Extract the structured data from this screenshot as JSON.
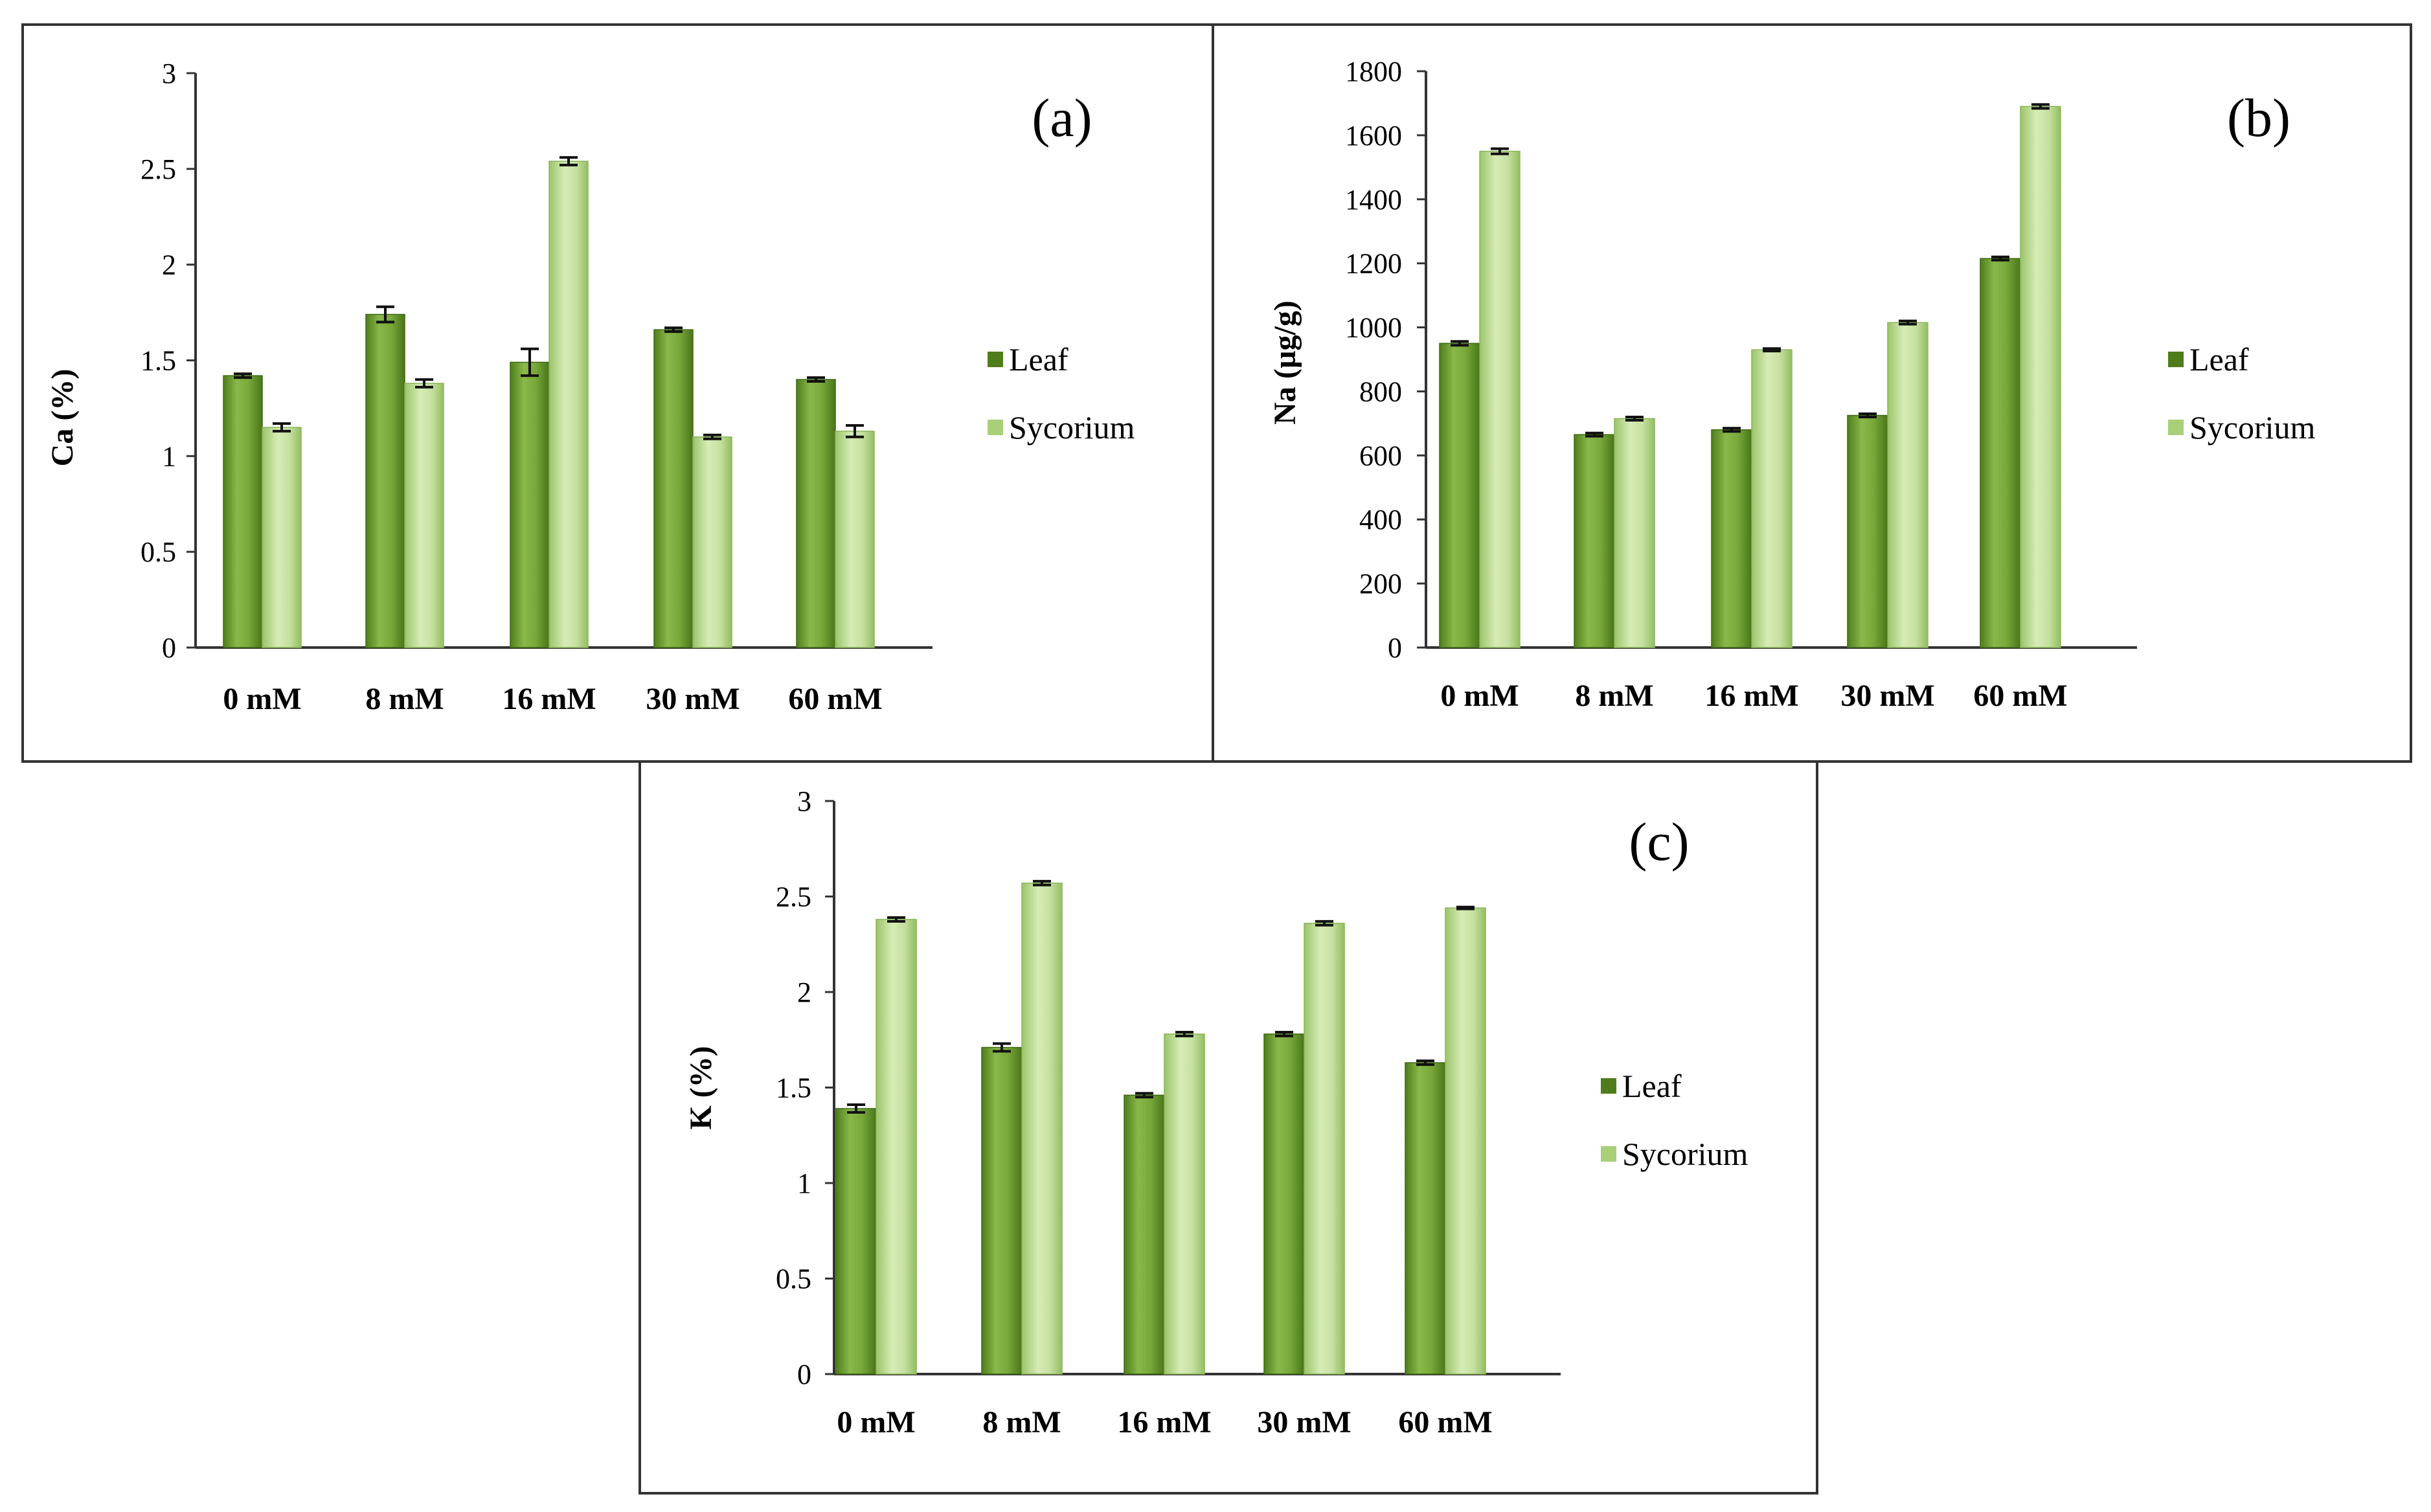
{
  "chart_data": [
    {
      "type": "bar",
      "panel_label": "(a)",
      "ylabel": "Ca (%)",
      "categories": [
        "0 mM",
        "8 mM",
        "16 mM",
        "30 mM",
        "60 mM"
      ],
      "ylim": [
        0,
        3
      ],
      "yticks": [
        "0",
        "0.5",
        "1",
        "1.5",
        "2",
        "2.5",
        "3"
      ],
      "series": [
        {
          "name": "Leaf",
          "values": [
            1.42,
            1.74,
            1.49,
            1.66,
            1.4
          ],
          "errors": [
            0.01,
            0.04,
            0.07,
            0.01,
            0.01
          ]
        },
        {
          "name": "Sycorium",
          "values": [
            1.15,
            1.38,
            2.54,
            1.1,
            1.13
          ],
          "errors": [
            0.02,
            0.02,
            0.02,
            0.01,
            0.03
          ]
        }
      ],
      "legend": [
        "Leaf",
        "Sycorium"
      ]
    },
    {
      "type": "bar",
      "panel_label": "(b)",
      "ylabel": "Na (µg/g)",
      "categories": [
        "0 mM",
        "8 mM",
        "16 mM",
        "30 mM",
        "60 mM"
      ],
      "ylim": [
        0,
        1800
      ],
      "yticks": [
        "0",
        "200",
        "400",
        "600",
        "800",
        "1000",
        "1200",
        "1400",
        "1600",
        "1800"
      ],
      "series": [
        {
          "name": "Leaf",
          "values": [
            950,
            665,
            680,
            725,
            1215
          ],
          "errors": [
            6,
            5,
            5,
            5,
            5
          ]
        },
        {
          "name": "Sycorium",
          "values": [
            1550,
            715,
            930,
            1015,
            1690
          ],
          "errors": [
            8,
            5,
            4,
            5,
            6
          ]
        }
      ],
      "legend": [
        "Leaf",
        "Sycorium"
      ]
    },
    {
      "type": "bar",
      "panel_label": "(c)",
      "ylabel": "K (%)",
      "categories": [
        "0 mM",
        "8 mM",
        "16 mM",
        "30 mM",
        "60 mM"
      ],
      "ylim": [
        0,
        3
      ],
      "yticks": [
        "0",
        "0.5",
        "1",
        "1.5",
        "2",
        "2.5",
        "3"
      ],
      "series": [
        {
          "name": "Leaf",
          "values": [
            1.39,
            1.71,
            1.46,
            1.78,
            1.63
          ],
          "errors": [
            0.02,
            0.02,
            0.01,
            0.01,
            0.01
          ]
        },
        {
          "name": "Sycorium",
          "values": [
            2.38,
            2.57,
            1.78,
            2.36,
            2.44
          ],
          "errors": [
            0.01,
            0.01,
            0.01,
            0.01,
            0.005
          ]
        }
      ],
      "legend": [
        "Leaf",
        "Sycorium"
      ]
    }
  ]
}
